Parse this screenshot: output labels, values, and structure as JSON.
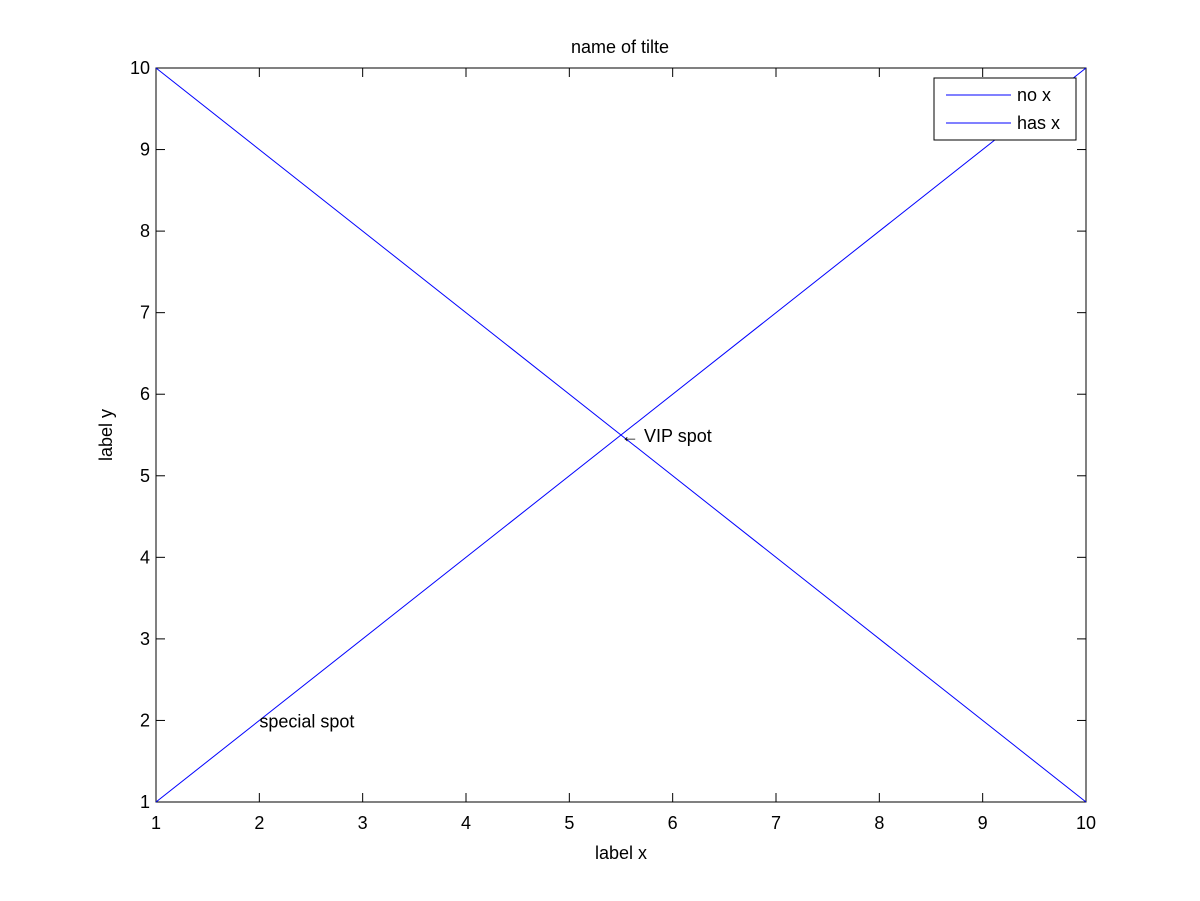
{
  "chart_data": {
    "type": "line",
    "title": "name of tilte",
    "xlabel": "label x",
    "ylabel": "label y",
    "xlim": [
      1,
      10
    ],
    "ylim": [
      1,
      10
    ],
    "xticks": [
      1,
      2,
      3,
      4,
      5,
      6,
      7,
      8,
      9,
      10
    ],
    "yticks": [
      1,
      2,
      3,
      4,
      5,
      6,
      7,
      8,
      9,
      10
    ],
    "grid": false,
    "legend_position": "top-right",
    "series": [
      {
        "name": "no x",
        "color": "#0000ff",
        "x": [
          1,
          10
        ],
        "y": [
          10,
          1
        ]
      },
      {
        "name": "has x",
        "color": "#0000ff",
        "x": [
          1,
          10
        ],
        "y": [
          1,
          10
        ]
      }
    ],
    "annotations": [
      {
        "text": "special spot",
        "x": 2,
        "y": 2
      },
      {
        "text": "← VIP spot",
        "x": 5.5,
        "y": 5.5
      }
    ]
  }
}
